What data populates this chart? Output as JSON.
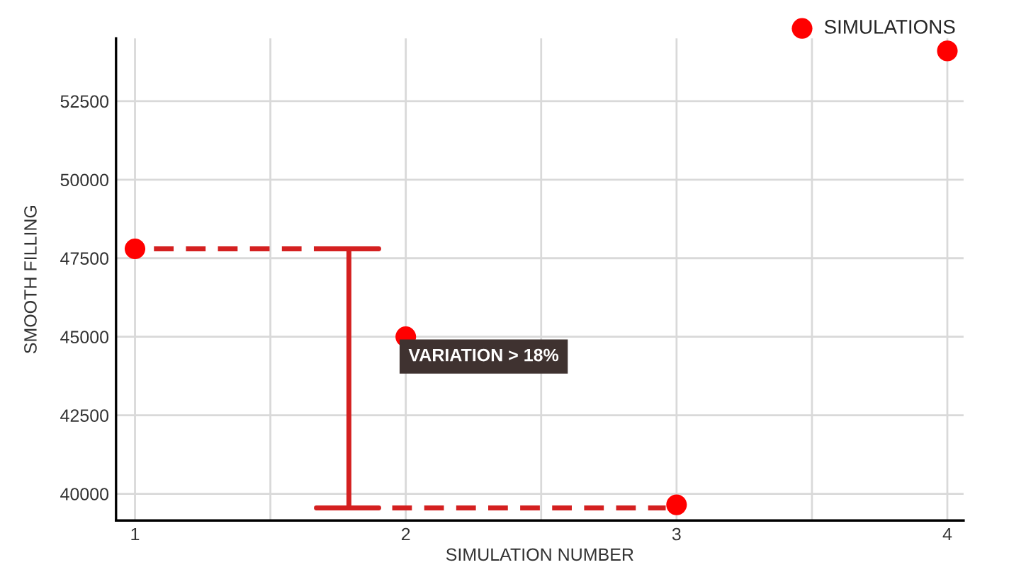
{
  "chart_data": {
    "type": "scatter",
    "xlabel": "SIMULATION NUMBER",
    "ylabel": "SMOOTH FILLING",
    "xlim": [
      0.93,
      4.06
    ],
    "xticks": [
      1,
      {
        "value": 1.5,
        "label": null
      },
      2,
      {
        "value": 2.5,
        "label": null
      },
      3,
      {
        "value": 3.5,
        "label": null
      },
      4
    ],
    "ylim": [
      39150,
      54500
    ],
    "yticks": [
      40000,
      42500,
      45000,
      47500,
      50000,
      52500
    ],
    "grid": true,
    "legend": "top right",
    "series": [
      {
        "name": "SIMULATIONS",
        "marker": "circle",
        "color": "#ff0000",
        "x": [
          1,
          2,
          3,
          4
        ],
        "values": [
          47800,
          45000,
          39650,
          54100
        ]
      },
      {
        "type": "line",
        "line_style": "dashed",
        "color": "#d42020",
        "x": [
          1.07,
          1.9
        ],
        "values": [
          47800,
          47800
        ]
      },
      {
        "type": "line",
        "line_style": "dashed",
        "color": "#d42020",
        "x": [
          1.95,
          2.96
        ],
        "values": [
          39550,
          39550
        ]
      },
      {
        "type": "line",
        "line_style": "solid",
        "color": "#d42020",
        "x": [
          1.67,
          1.9
        ],
        "values": [
          47800,
          47800
        ]
      },
      {
        "type": "line",
        "line_style": "solid",
        "color": "#d42020",
        "x": [
          1.79,
          1.79
        ],
        "values": [
          47800,
          39550
        ]
      },
      {
        "type": "line",
        "line_style": "solid",
        "color": "#d42020",
        "x": [
          1.67,
          1.9
        ],
        "values": [
          39550,
          39550
        ]
      }
    ],
    "annotations": [
      "VARIATION > 18%"
    ]
  }
}
